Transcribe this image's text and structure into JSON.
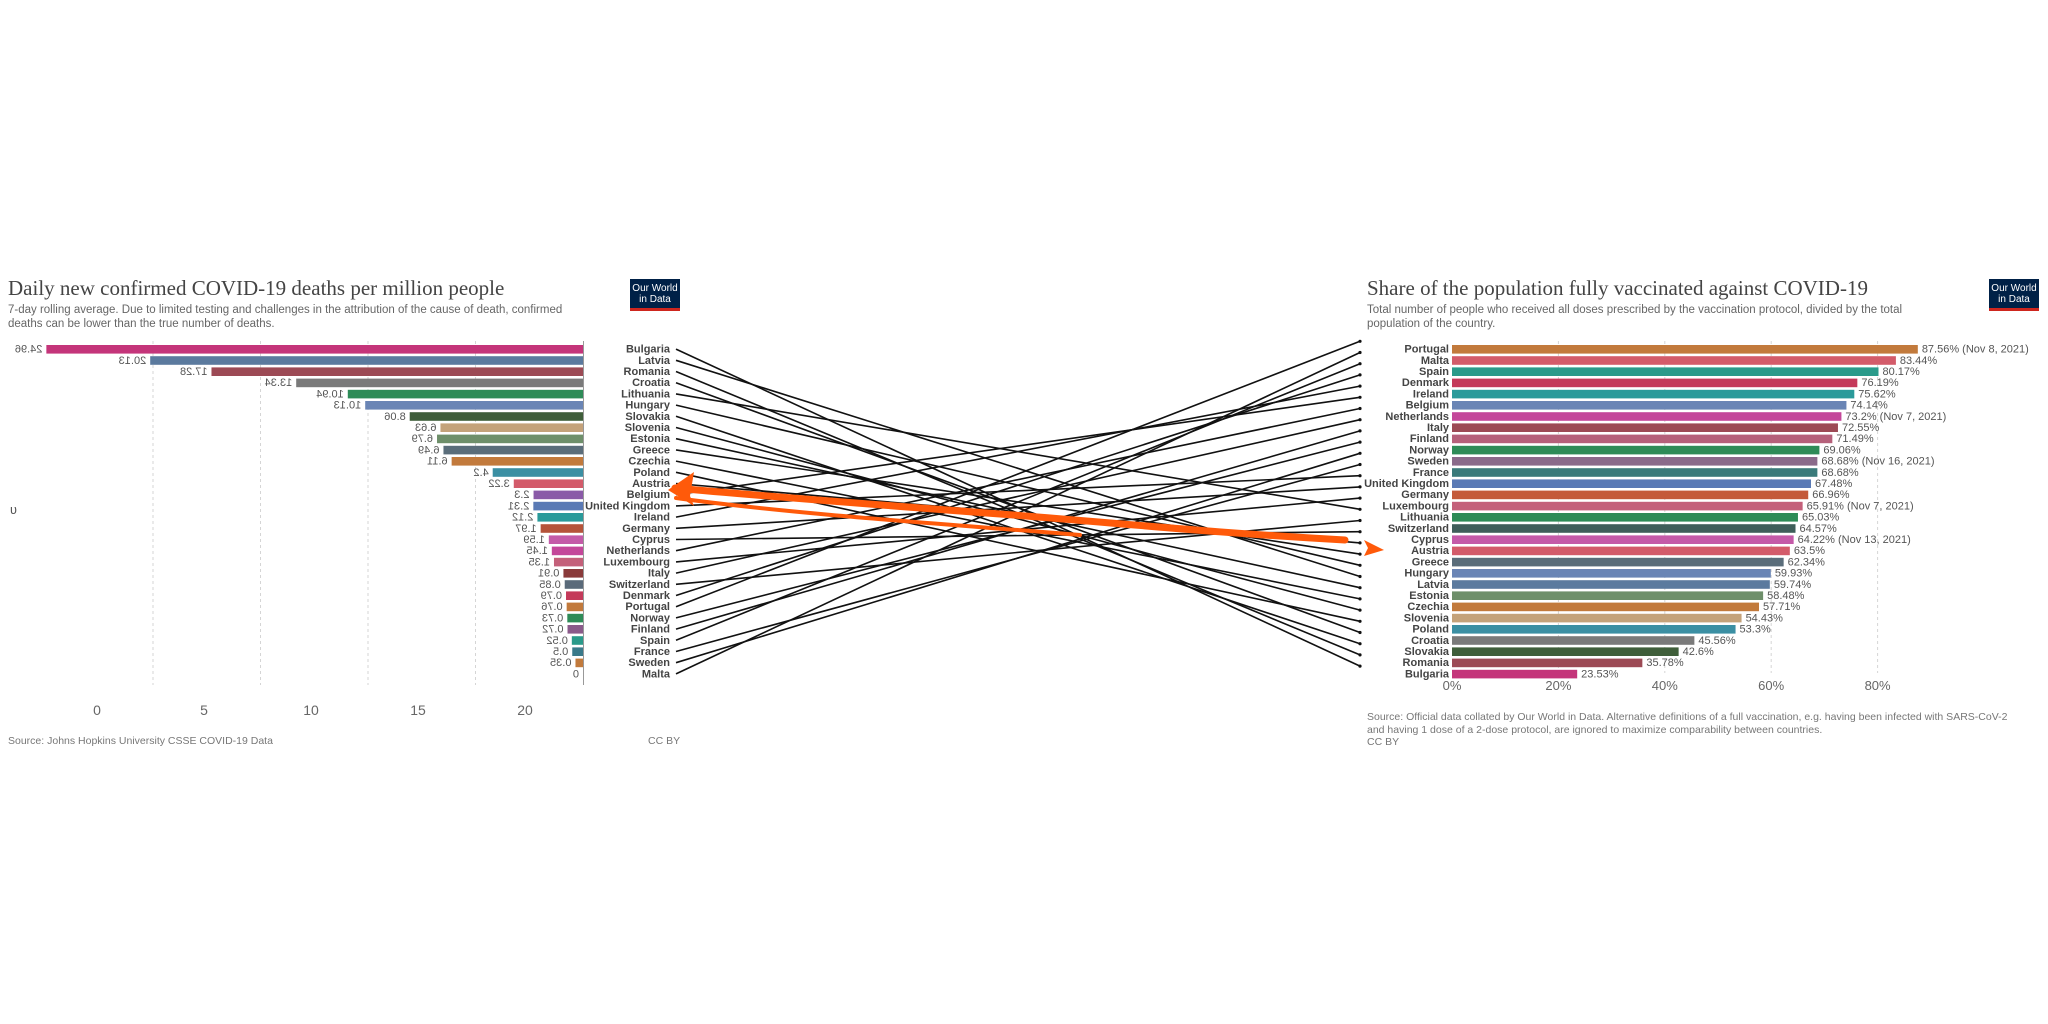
{
  "left": {
    "title": "Daily new confirmed COVID-19 deaths per million people",
    "subtitle": "7-day rolling average. Due to limited testing and challenges in the attribution of the cause of death, confirmed deaths can be lower than the true number of deaths.",
    "source": "Source: Johns Hopkins University CSSE COVID-19 Data",
    "license": "CC BY",
    "stray_glyph": "ʋ",
    "logo_line1": "Our World",
    "logo_line2": "in Data"
  },
  "right": {
    "title": "Share of the population fully vaccinated against COVID-19",
    "subtitle": "Total number of people who received all doses prescribed by the vaccination protocol, divided by the total population of the country.",
    "source": "Source: Official data collated by Our World in Data. Alternative definitions of a full vaccination, e.g. having been infected with SARS-CoV-2 and having 1 dose of a 2-dose protocol, are ignored to maximize comparability between countries.",
    "license": "CC BY",
    "logo_line1": "Our World",
    "logo_line2": "in Data"
  },
  "chart_data": [
    {
      "type": "bar",
      "title": "Daily new confirmed COVID-19 deaths per million people",
      "orientation": "horizontal, mirrored (bars grow to the left)",
      "categories": [
        "Bulgaria",
        "Latvia",
        "Romania",
        "Croatia",
        "Lithuania",
        "Hungary",
        "Slovakia",
        "Slovenia",
        "Estonia",
        "Greece",
        "Czechia",
        "Poland",
        "Austria",
        "Belgium",
        "United Kingdom",
        "Ireland",
        "Germany",
        "Cyprus",
        "Netherlands",
        "Luxembourg",
        "Italy",
        "Switzerland",
        "Denmark",
        "Portugal",
        "Norway",
        "Finland",
        "Spain",
        "France",
        "Sweden",
        "Malta"
      ],
      "values": [
        24.96,
        20.13,
        17.28,
        13.34,
        10.94,
        10.13,
        8.06,
        6.63,
        6.79,
        6.49,
        6.11,
        4.2,
        3.22,
        2.3,
        2.31,
        2.12,
        1.97,
        1.59,
        1.45,
        1.35,
        0.91,
        0.85,
        0.79,
        0.76,
        0.73,
        0.72,
        0.52,
        0.5,
        0.35,
        0
      ],
      "value_labels": [
        "24.96",
        "20.13",
        "17.28",
        "13.34",
        "10.94",
        "10.13",
        "8.06",
        "6.63",
        "6.79",
        "6.49",
        "6.11",
        "4.2",
        "3.22",
        "2.3",
        "2.31",
        "2.12",
        "1.97",
        "1.59",
        "1.45",
        "1.35",
        "0.91",
        "0.85",
        "0.79",
        "0.76",
        "0.73",
        "0.72",
        "0.52",
        "0.5",
        "0.35",
        "0"
      ],
      "colors": [
        "#c4357a",
        "#5b7a9e",
        "#9c4a55",
        "#7a7a7a",
        "#2e8b57",
        "#6a85b5",
        "#3f5e3a",
        "#c4a27a",
        "#6e8f6a",
        "#5a6d7a",
        "#c27a3c",
        "#3b8fa3",
        "#d35b6a",
        "#8a5aa8",
        "#5a7ab5",
        "#2a9a9a",
        "#b5533a",
        "#c45aa8",
        "#c4479a",
        "#c4607a",
        "#8a3a3a",
        "#5a6a7a",
        "#c43a5a",
        "#c27a3c",
        "#2e8b57",
        "#8a5a8a",
        "#2a9a8a",
        "#3a7a8a",
        "#c27a3c",
        "#888888"
      ],
      "x_ticks": [
        "0",
        "5",
        "10",
        "15",
        "20"
      ],
      "xlim": [
        0,
        25
      ],
      "grid": "vertical"
    },
    {
      "type": "bar",
      "title": "Share of the population fully vaccinated against COVID-19",
      "orientation": "horizontal",
      "categories": [
        "Portugal",
        "Malta",
        "Spain",
        "Denmark",
        "Ireland",
        "Belgium",
        "Netherlands",
        "Italy",
        "Finland",
        "Norway",
        "Sweden",
        "France",
        "United Kingdom",
        "Germany",
        "Luxembourg",
        "Lithuania",
        "Switzerland",
        "Cyprus",
        "Austria",
        "Greece",
        "Hungary",
        "Latvia",
        "Estonia",
        "Czechia",
        "Slovenia",
        "Poland",
        "Croatia",
        "Slovakia",
        "Romania",
        "Bulgaria"
      ],
      "values": [
        87.56,
        83.44,
        80.17,
        76.19,
        75.62,
        74.14,
        73.2,
        72.55,
        71.49,
        69.06,
        68.68,
        68.68,
        67.48,
        66.96,
        65.91,
        65.03,
        64.57,
        64.22,
        63.5,
        62.34,
        59.93,
        59.74,
        58.48,
        57.71,
        54.43,
        53.3,
        45.56,
        42.6,
        35.78,
        23.53
      ],
      "value_labels": [
        "87.56% (Nov 8, 2021)",
        "83.44%",
        "80.17%",
        "76.19%",
        "75.62%",
        "74.14%",
        "73.2% (Nov 7, 2021)",
        "72.55%",
        "71.49%",
        "69.06%",
        "68.68% (Nov 16, 2021)",
        "68.68%",
        "67.48%",
        "66.96%",
        "65.91% (Nov 7, 2021)",
        "65.03%",
        "64.57%",
        "64.22% (Nov 13, 2021)",
        "63.5%",
        "62.34%",
        "59.93%",
        "59.74%",
        "58.48%",
        "57.71%",
        "54.43%",
        "53.3%",
        "45.56%",
        "42.6%",
        "35.78%",
        "23.53%"
      ],
      "colors": [
        "#c27a3c",
        "#d35b6a",
        "#2a9a8a",
        "#c43a5a",
        "#2a9a9a",
        "#6a85b5",
        "#c4479a",
        "#9c4a55",
        "#b5607a",
        "#2e8b57",
        "#8a6a8a",
        "#3a7a7a",
        "#5a7ab5",
        "#c45a3a",
        "#c4607a",
        "#2e8b57",
        "#3f5e5a",
        "#c45aa8",
        "#d35b6a",
        "#5a6d7a",
        "#6a85b5",
        "#5b7a9e",
        "#6e8f6a",
        "#c27a3c",
        "#c4a27a",
        "#3b8fa3",
        "#7a7a7a",
        "#3f5e3a",
        "#9c4a55",
        "#c4357a"
      ],
      "x_ticks": [
        "0%",
        "20%",
        "40%",
        "60%",
        "80%"
      ],
      "xlim": [
        0,
        100
      ],
      "grid": "vertical"
    }
  ],
  "annotations": {
    "connector_lines": "black lines connecting each country in the middle list (deaths order) to the same country's bar in the vaccination chart",
    "arrow_color": "#ff5a0a"
  }
}
